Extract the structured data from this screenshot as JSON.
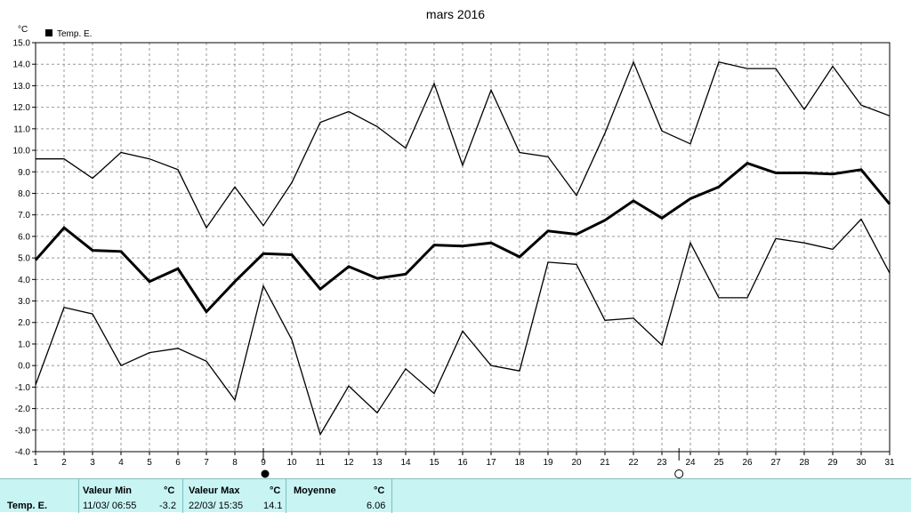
{
  "chart_data": {
    "type": "line",
    "title": "mars 2016",
    "ylabel": "°C",
    "ylim": [
      -4.0,
      15.0
    ],
    "yticks": [
      "15.0",
      "14.0",
      "13.0",
      "12.0",
      "11.0",
      "10.0",
      "9.0",
      "8.0",
      "7.0",
      "6.0",
      "5.0",
      "4.0",
      "3.0",
      "2.0",
      "1.0",
      "0.0",
      "-1.0",
      "-2.0",
      "-3.0",
      "-4.0"
    ],
    "x": [
      1,
      2,
      3,
      4,
      5,
      6,
      7,
      8,
      9,
      10,
      11,
      12,
      13,
      14,
      15,
      16,
      17,
      18,
      19,
      20,
      21,
      22,
      23,
      24,
      25,
      26,
      27,
      28,
      29,
      30,
      31
    ],
    "legend": "Temp. E.",
    "grid": true,
    "series": [
      {
        "role": "max",
        "width": 1.3,
        "values": [
          9.6,
          9.6,
          8.7,
          9.9,
          9.6,
          9.1,
          6.4,
          8.3,
          6.5,
          8.5,
          11.3,
          11.8,
          11.1,
          10.1,
          13.1,
          9.3,
          12.8,
          9.9,
          9.7,
          7.9,
          10.8,
          14.1,
          10.9,
          10.3,
          14.1,
          13.8,
          13.8,
          11.9,
          13.9,
          12.1,
          11.6
        ]
      },
      {
        "role": "mean",
        "width": 3,
        "values": [
          4.9,
          6.4,
          5.35,
          5.3,
          3.9,
          4.5,
          2.5,
          3.9,
          5.2,
          5.15,
          3.55,
          4.6,
          4.05,
          4.25,
          5.6,
          5.55,
          5.7,
          5.05,
          6.25,
          6.1,
          6.75,
          7.65,
          6.85,
          7.75,
          8.3,
          9.4,
          8.95,
          8.95,
          8.9,
          9.1,
          7.5
        ]
      },
      {
        "role": "min",
        "width": 1.3,
        "values": [
          -0.9,
          2.7,
          2.4,
          0.0,
          0.6,
          0.8,
          0.2,
          -1.6,
          3.7,
          1.2,
          -3.2,
          -0.95,
          -2.2,
          -0.15,
          -1.3,
          1.6,
          0.0,
          -0.25,
          4.8,
          4.7,
          2.1,
          2.2,
          0.95,
          5.7,
          3.15,
          3.15,
          5.9,
          5.7,
          5.4,
          6.8,
          4.3
        ]
      }
    ],
    "moon_phases": [
      {
        "day": 9,
        "phase": "new-moon"
      },
      {
        "day": 23.6,
        "phase": "full-moon"
      }
    ]
  },
  "stats": {
    "series_label": "Temp. E.",
    "min": {
      "label": "Valeur Min",
      "unit": "°C",
      "date": "11/03/  06:55",
      "value": "-3.2"
    },
    "max": {
      "label": "Valeur Max",
      "unit": "°C",
      "date": "22/03/  15:35",
      "value": "14.1"
    },
    "mean": {
      "label": "Moyenne",
      "unit": "°C",
      "value": "6.06"
    }
  }
}
